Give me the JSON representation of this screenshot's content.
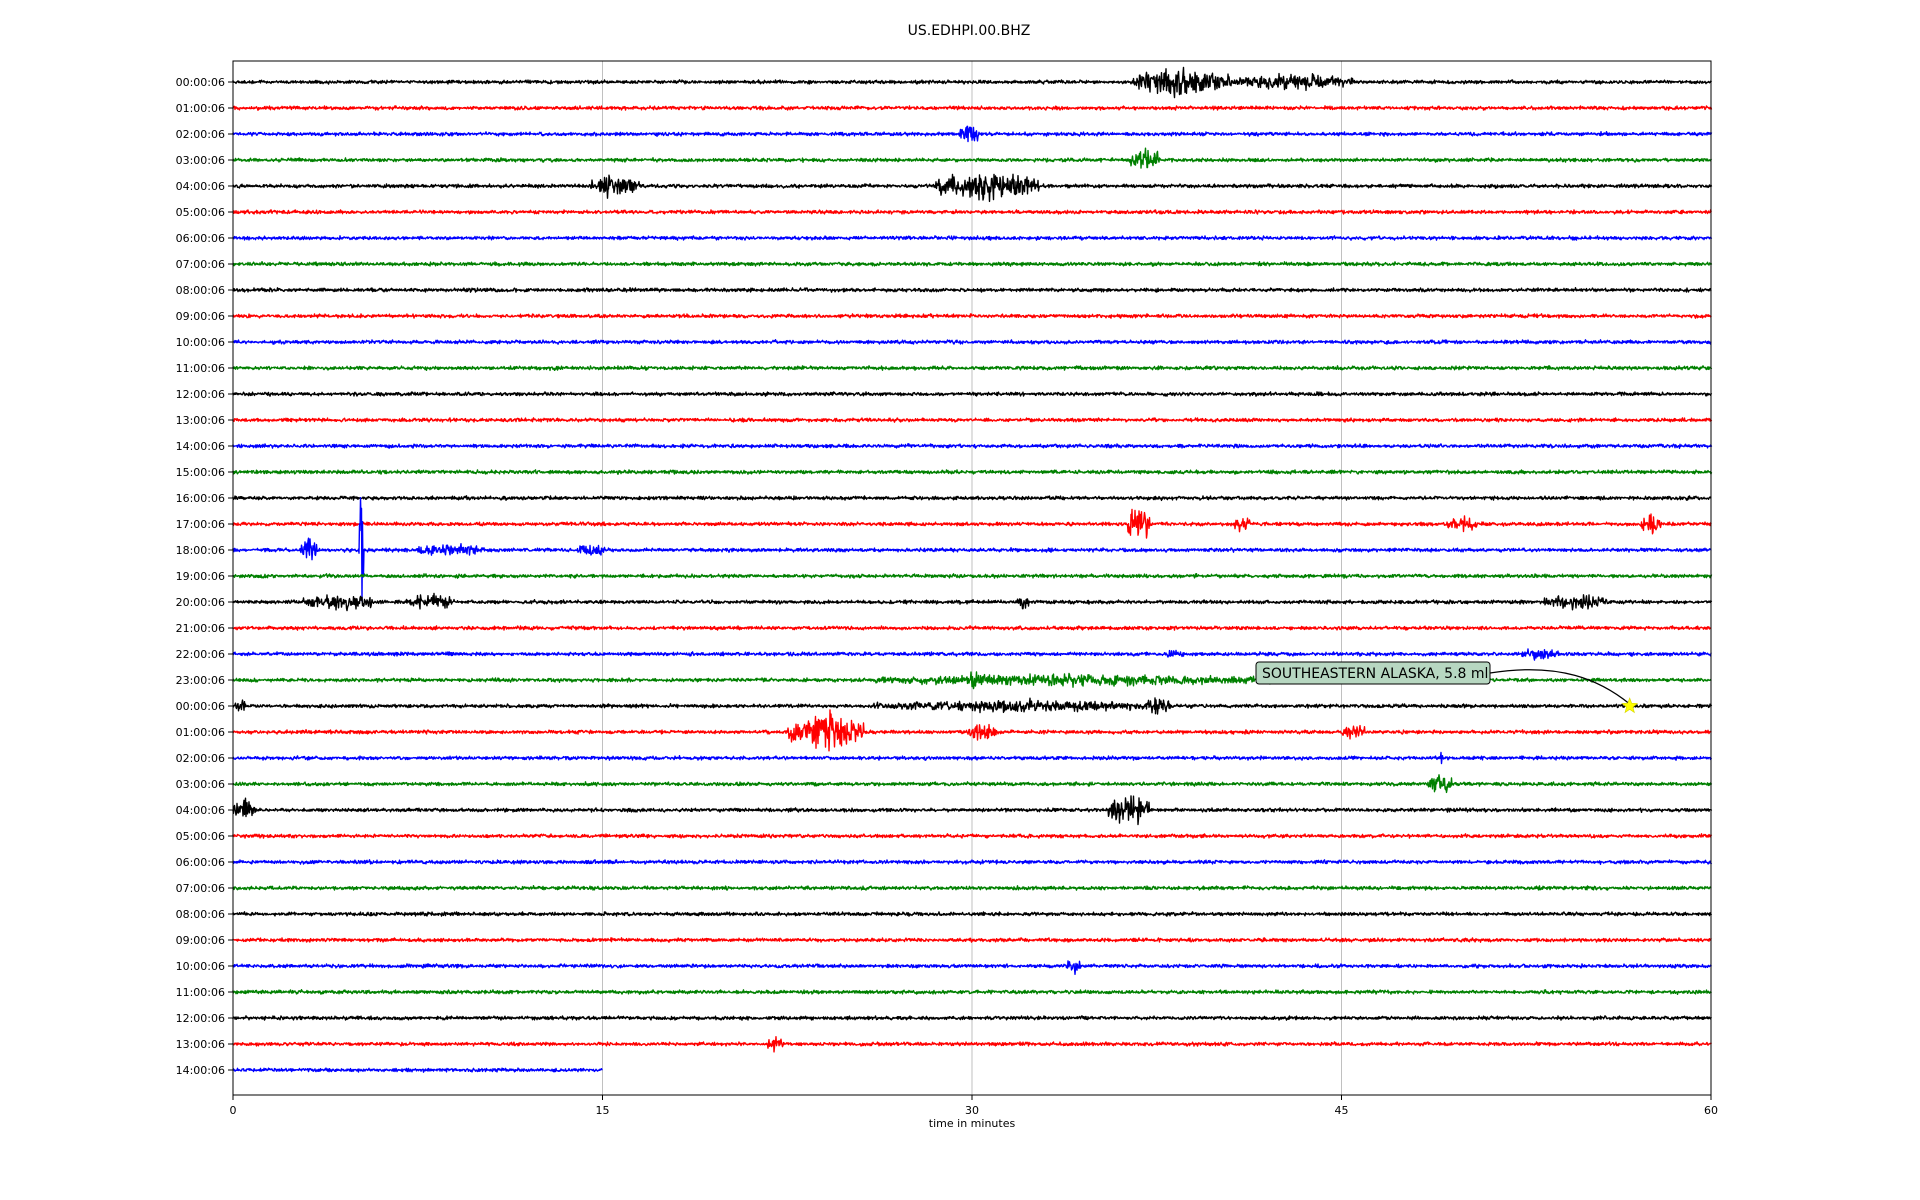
{
  "chart_data": {
    "type": "line",
    "title": "US.EDHPI.00.BHZ",
    "xlabel": "time in minutes",
    "ylabel": "",
    "xlim": [
      0,
      60
    ],
    "xticks": [
      0,
      15,
      30,
      45,
      60
    ],
    "grid": "vertical lines at each x tick",
    "color_cycle": [
      "#000000",
      "#ff0000",
      "#0000ff",
      "#008000"
    ],
    "row_labels": [
      "00:00:06",
      "01:00:06",
      "02:00:06",
      "03:00:06",
      "04:00:06",
      "05:00:06",
      "06:00:06",
      "07:00:06",
      "08:00:06",
      "09:00:06",
      "10:00:06",
      "11:00:06",
      "12:00:06",
      "13:00:06",
      "14:00:06",
      "15:00:06",
      "16:00:06",
      "17:00:06",
      "18:00:06",
      "19:00:06",
      "20:00:06",
      "21:00:06",
      "22:00:06",
      "23:00:06",
      "00:00:06",
      "01:00:06",
      "02:00:06",
      "03:00:06",
      "04:00:06",
      "05:00:06",
      "06:00:06",
      "07:00:06",
      "08:00:06",
      "09:00:06",
      "10:00:06",
      "11:00:06",
      "12:00:06",
      "13:00:06",
      "14:00:06"
    ],
    "last_trace_end_minute": 15,
    "bursts": [
      {
        "row": 0,
        "start": 36.5,
        "end": 40.5,
        "amp": 14
      },
      {
        "row": 0,
        "start": 40.5,
        "end": 45.5,
        "amp": 8
      },
      {
        "row": 2,
        "start": 29.5,
        "end": 30.3,
        "amp": 9
      },
      {
        "row": 3,
        "start": 36.4,
        "end": 37.6,
        "amp": 12
      },
      {
        "row": 4,
        "start": 14.5,
        "end": 16.5,
        "amp": 10
      },
      {
        "row": 4,
        "start": 28.5,
        "end": 32.7,
        "amp": 14
      },
      {
        "row": 17,
        "start": 36.3,
        "end": 37.2,
        "amp": 18
      },
      {
        "row": 17,
        "start": 40.6,
        "end": 41.3,
        "amp": 9
      },
      {
        "row": 17,
        "start": 49.3,
        "end": 50.5,
        "amp": 8
      },
      {
        "row": 17,
        "start": 57.1,
        "end": 58.0,
        "amp": 10
      },
      {
        "row": 18,
        "start": 5.1,
        "end": 5.3,
        "amp": 60
      },
      {
        "row": 18,
        "start": 2.7,
        "end": 3.4,
        "amp": 14
      },
      {
        "row": 18,
        "start": 7.5,
        "end": 10.2,
        "amp": 7
      },
      {
        "row": 18,
        "start": 14.0,
        "end": 15.1,
        "amp": 8
      },
      {
        "row": 20,
        "start": 2.8,
        "end": 5.7,
        "amp": 9
      },
      {
        "row": 20,
        "start": 7.0,
        "end": 9.0,
        "amp": 8
      },
      {
        "row": 20,
        "start": 31.8,
        "end": 32.3,
        "amp": 9
      },
      {
        "row": 20,
        "start": 53.2,
        "end": 55.8,
        "amp": 9
      },
      {
        "row": 22,
        "start": 37.9,
        "end": 38.6,
        "amp": 6
      },
      {
        "row": 22,
        "start": 52.3,
        "end": 53.8,
        "amp": 6
      },
      {
        "row": 23,
        "start": 26.0,
        "end": 43.0,
        "amp": 6
      },
      {
        "row": 23,
        "start": 29.9,
        "end": 30.2,
        "amp": 12
      },
      {
        "row": 24,
        "start": 0.0,
        "end": 0.5,
        "amp": 8
      },
      {
        "row": 24,
        "start": 26.0,
        "end": 38.2,
        "amp": 6
      },
      {
        "row": 24,
        "start": 37.0,
        "end": 38.0,
        "amp": 10
      },
      {
        "row": 25,
        "start": 22.5,
        "end": 25.6,
        "amp": 20
      },
      {
        "row": 25,
        "start": 29.8,
        "end": 31.0,
        "amp": 9
      },
      {
        "row": 25,
        "start": 45.0,
        "end": 46.0,
        "amp": 8
      },
      {
        "row": 26,
        "start": 48.9,
        "end": 49.1,
        "amp": 6
      },
      {
        "row": 27,
        "start": 48.5,
        "end": 49.5,
        "amp": 10
      },
      {
        "row": 28,
        "start": 0.0,
        "end": 0.9,
        "amp": 10
      },
      {
        "row": 28,
        "start": 35.5,
        "end": 37.2,
        "amp": 16
      },
      {
        "row": 34,
        "start": 33.8,
        "end": 34.4,
        "amp": 8
      },
      {
        "row": 37,
        "start": 21.7,
        "end": 22.3,
        "amp": 7
      }
    ],
    "annotation": {
      "label": "SOUTHEASTERN ALASKA, 5.8 ml",
      "row": 24,
      "minute": 56.7,
      "marker": "yellow star",
      "box_color": "#b7d7c1"
    }
  }
}
